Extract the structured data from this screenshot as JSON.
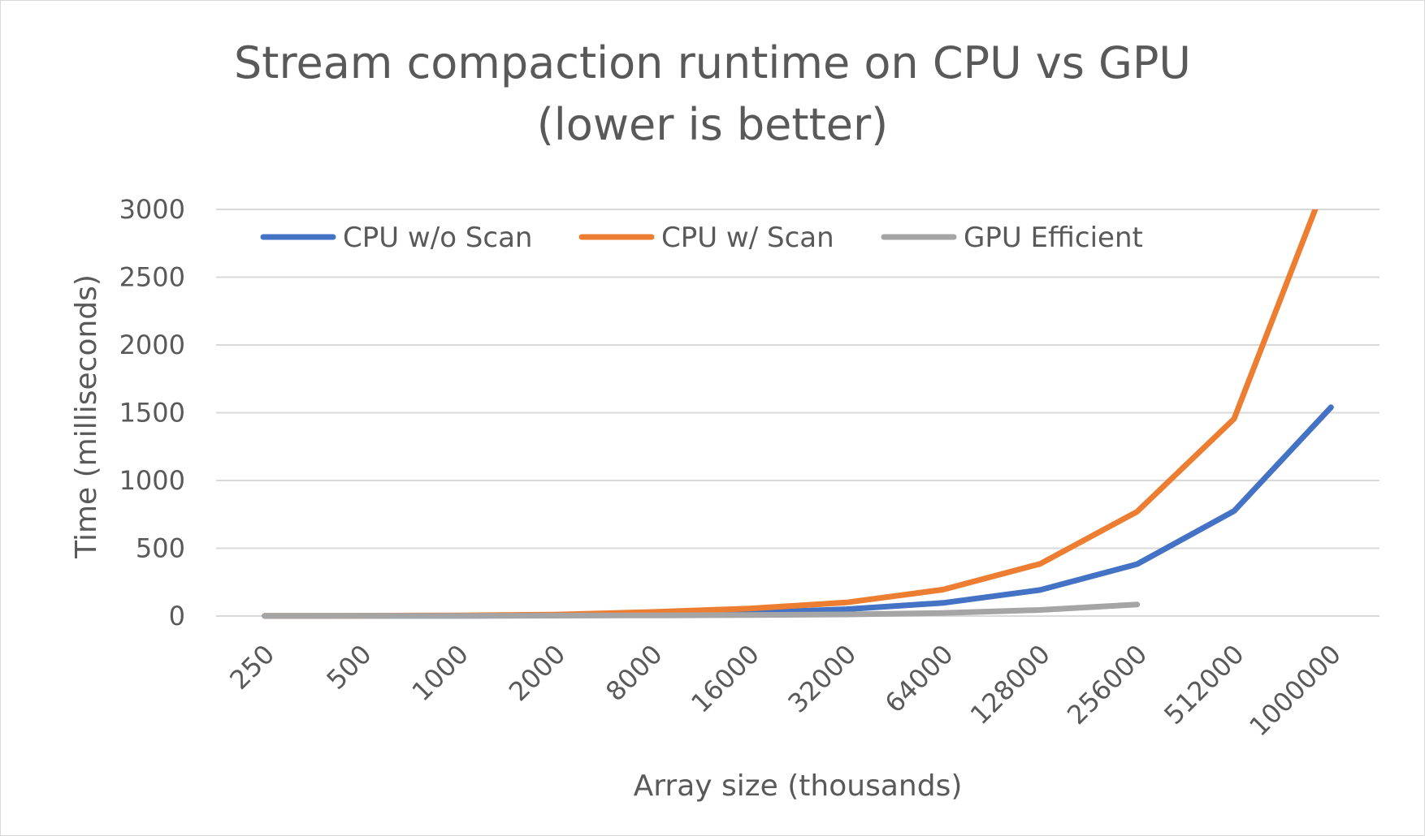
{
  "chart_data": {
    "type": "line",
    "title": [
      "Stream compaction runtime on CPU vs GPU",
      "(lower is better)"
    ],
    "xlabel": "Array size (thousands)",
    "ylabel": "Time (milliseconds)",
    "categories": [
      "250",
      "500",
      "1000",
      "2000",
      "8000",
      "16000",
      "32000",
      "64000",
      "128000",
      "256000",
      "512000",
      "1000000"
    ],
    "ylim": [
      0,
      3000
    ],
    "yticks": [
      "0",
      "500",
      "1000",
      "1500",
      "2000",
      "2500",
      "3000"
    ],
    "grid": true,
    "legend_position": "top",
    "series": [
      {
        "name": "CPU w/o Scan",
        "color": "#4472C4",
        "values": [
          0.5,
          1,
          2,
          4,
          12,
          24,
          50,
          97,
          192,
          383,
          775,
          1540
        ]
      },
      {
        "name": "CPU w/ Scan",
        "color": "#ED7D31",
        "values": [
          1,
          2,
          5,
          10,
          30,
          55,
          100,
          195,
          385,
          770,
          1455,
          3300
        ]
      },
      {
        "name": "GPU Efficient",
        "color": "#A5A5A5",
        "values": [
          1,
          1,
          2,
          3,
          5,
          7,
          12,
          22,
          45,
          85,
          null,
          null
        ]
      }
    ]
  }
}
